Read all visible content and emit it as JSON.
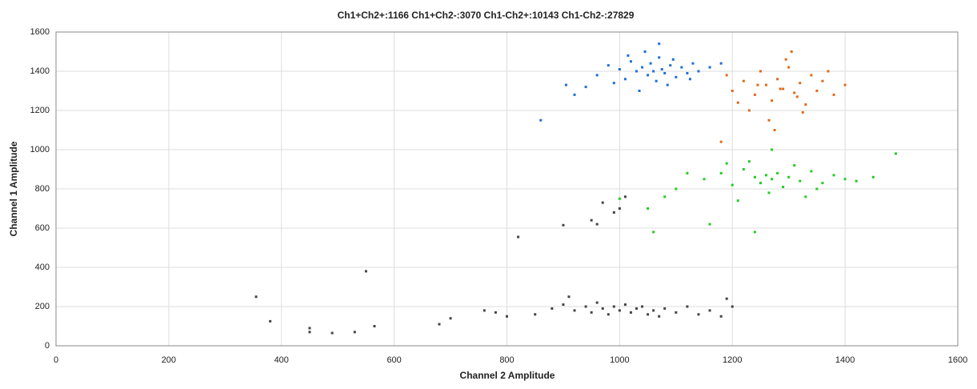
{
  "chart_data": {
    "type": "scatter",
    "title": "Ch1+Ch2+:1166  Ch1+Ch2-:3070  Ch1-Ch2+:10143  Ch1-Ch2-:27829",
    "x_label": "Channel 2 Amplitude",
    "y_label": "Channel 1 Amplitude",
    "xlim": [
      0,
      1600
    ],
    "ylim": [
      0,
      1600
    ],
    "xticks": [
      0,
      200,
      400,
      600,
      800,
      1000,
      1200,
      1400,
      1600
    ],
    "yticks": [
      0,
      200,
      400,
      600,
      800,
      1000,
      1200,
      1400,
      1600
    ],
    "grid": true,
    "series": [
      {
        "color": "#1f6fd6",
        "x": [
          960,
          980,
          1000,
          1010,
          1020,
          1030,
          1040,
          1050,
          1055,
          1060,
          1065,
          1070,
          1075,
          1080,
          1090,
          1100,
          1110,
          1120,
          1130,
          1140,
          990,
          1015,
          1045,
          1085,
          1125,
          940,
          920,
          1160,
          1180,
          860,
          905,
          1070,
          1035,
          1095
        ],
        "y": [
          1380,
          1430,
          1410,
          1360,
          1450,
          1400,
          1420,
          1380,
          1440,
          1400,
          1350,
          1470,
          1410,
          1390,
          1430,
          1370,
          1420,
          1390,
          1440,
          1400,
          1340,
          1480,
          1500,
          1330,
          1360,
          1320,
          1280,
          1420,
          1440,
          1150,
          1330,
          1540,
          1300,
          1460
        ]
      },
      {
        "color": "#e06a1a",
        "x": [
          1200,
          1220,
          1240,
          1250,
          1260,
          1270,
          1280,
          1290,
          1300,
          1310,
          1320,
          1330,
          1340,
          1350,
          1230,
          1265,
          1295,
          1325,
          1360,
          1380,
          1190,
          1210,
          1275,
          1305,
          1245,
          1285,
          1370,
          1400,
          1180,
          1315
        ],
        "y": [
          1300,
          1350,
          1280,
          1400,
          1330,
          1250,
          1360,
          1310,
          1420,
          1290,
          1340,
          1230,
          1380,
          1300,
          1200,
          1150,
          1460,
          1190,
          1350,
          1280,
          1380,
          1240,
          1100,
          1500,
          1330,
          1310,
          1400,
          1330,
          1040,
          1270
        ]
      },
      {
        "color": "#22cc22",
        "x": [
          1150,
          1180,
          1200,
          1220,
          1240,
          1250,
          1260,
          1270,
          1280,
          1290,
          1300,
          1320,
          1340,
          1360,
          1380,
          1400,
          1100,
          1120,
          1080,
          1050,
          1230,
          1265,
          1310,
          1350,
          1420,
          1450,
          1490,
          1210,
          1190,
          1330,
          1160,
          1270,
          1240,
          1000,
          1060
        ],
        "y": [
          850,
          880,
          820,
          900,
          860,
          830,
          870,
          850,
          880,
          810,
          860,
          840,
          890,
          830,
          870,
          850,
          800,
          880,
          760,
          700,
          940,
          780,
          920,
          800,
          840,
          860,
          980,
          740,
          930,
          760,
          620,
          1000,
          580,
          750,
          580
        ]
      },
      {
        "color": "#444444",
        "x": [
          850,
          880,
          900,
          920,
          940,
          950,
          960,
          970,
          980,
          990,
          1000,
          1010,
          1020,
          1030,
          1040,
          1050,
          1060,
          1080,
          1100,
          1120,
          1140,
          1160,
          1180,
          800,
          780,
          760,
          700,
          680,
          1200,
          1190,
          910,
          1070,
          355,
          380,
          450,
          450,
          490,
          530,
          550,
          565,
          820,
          900,
          960,
          970,
          990,
          1000,
          1010,
          950
        ],
        "y": [
          160,
          190,
          210,
          180,
          200,
          170,
          220,
          190,
          160,
          200,
          180,
          210,
          170,
          190,
          200,
          160,
          180,
          190,
          170,
          200,
          160,
          180,
          150,
          150,
          170,
          180,
          140,
          110,
          200,
          240,
          250,
          150,
          250,
          125,
          90,
          70,
          65,
          70,
          380,
          100,
          555,
          615,
          620,
          730,
          680,
          700,
          760,
          640
        ]
      }
    ]
  }
}
